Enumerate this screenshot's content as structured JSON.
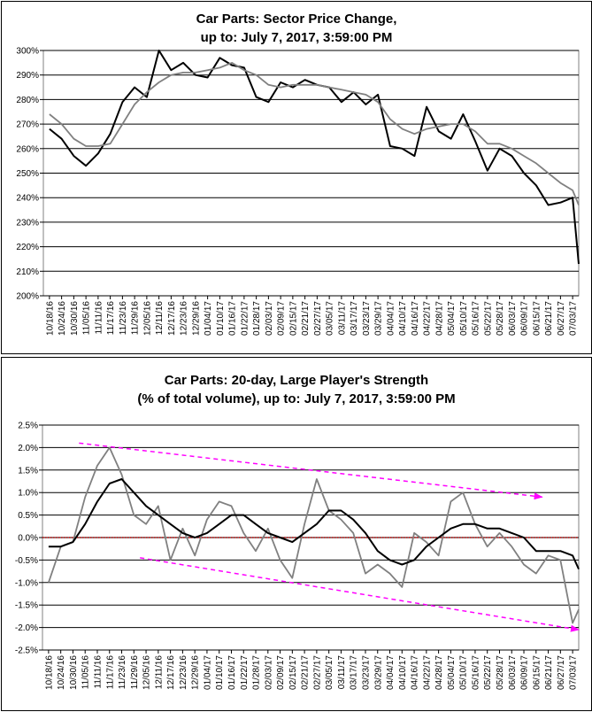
{
  "chart_data": [
    {
      "type": "line",
      "title": "Car Parts: Sector Price Change,",
      "subtitle": "up to: July 7, 2017, 3:59:00 PM",
      "xlabel": "",
      "ylabel": "",
      "ylim": [
        200,
        300
      ],
      "y_ticks": [
        "200%",
        "210%",
        "220%",
        "230%",
        "240%",
        "250%",
        "260%",
        "270%",
        "280%",
        "290%",
        "300%"
      ],
      "x_ticks": [
        "10/18/16",
        "10/24/16",
        "10/30/16",
        "11/05/16",
        "11/11/16",
        "11/17/16",
        "11/23/16",
        "11/29/16",
        "12/05/16",
        "12/11/16",
        "12/17/16",
        "12/23/16",
        "12/29/16",
        "01/04/17",
        "01/10/17",
        "01/16/17",
        "01/22/17",
        "01/28/17",
        "02/03/17",
        "02/09/17",
        "02/15/17",
        "02/21/17",
        "02/27/17",
        "03/05/17",
        "03/11/17",
        "03/17/17",
        "03/23/17",
        "03/29/17",
        "04/04/17",
        "04/10/17",
        "04/16/17",
        "04/22/17",
        "04/28/17",
        "05/04/17",
        "05/10/17",
        "05/16/17",
        "05/22/17",
        "05/28/17",
        "06/03/17",
        "06/09/17",
        "06/15/17",
        "06/21/17",
        "06/27/17",
        "07/03/17"
      ],
      "grid": true,
      "series": [
        {
          "color": "#000000",
          "x": [
            0,
            1,
            2,
            3,
            4,
            5,
            6,
            7,
            8,
            9,
            10,
            11,
            12,
            13,
            14,
            15,
            16,
            17,
            18,
            19,
            20,
            21,
            22,
            23,
            24,
            25,
            26,
            27,
            28,
            29,
            30,
            31,
            32,
            33,
            34,
            35,
            36,
            37,
            38,
            39,
            40,
            41,
            42,
            43,
            43.5
          ],
          "y": [
            268,
            264,
            257,
            253,
            258,
            266,
            279,
            285,
            281,
            300,
            292,
            295,
            290,
            289,
            297,
            294,
            293,
            281,
            279,
            287,
            285,
            288,
            286,
            285,
            279,
            283,
            278,
            282,
            261,
            260,
            257,
            277,
            267,
            264,
            274,
            263,
            251,
            260,
            257,
            250,
            245,
            237,
            238,
            240,
            213
          ]
        },
        {
          "color": "#808080",
          "x": [
            0,
            1,
            2,
            3,
            4,
            5,
            6,
            7,
            8,
            9,
            10,
            11,
            12,
            13,
            14,
            15,
            16,
            17,
            18,
            19,
            20,
            21,
            22,
            23,
            24,
            25,
            26,
            27,
            28,
            29,
            30,
            31,
            32,
            33,
            34,
            35,
            36,
            37,
            38,
            39,
            40,
            41,
            42,
            43,
            43.5
          ],
          "y": [
            274,
            270,
            264,
            261,
            261,
            262,
            270,
            278,
            283,
            287,
            290,
            291,
            291,
            292,
            293,
            295,
            292,
            290,
            286,
            285,
            286,
            286,
            286,
            285,
            284,
            283,
            282,
            279,
            272,
            268,
            266,
            268,
            269,
            270,
            270,
            267,
            262,
            262,
            260,
            257,
            254,
            250,
            246,
            243,
            237
          ]
        }
      ]
    },
    {
      "type": "line",
      "title": "Car Parts: 20-day, Large Player's Strength",
      "subtitle": "(% of total volume), up to: July 7, 2017, 3:59:00 PM",
      "xlabel": "",
      "ylabel": "",
      "ylim": [
        -2.5,
        2.5
      ],
      "y_ticks": [
        "-2.5%",
        "-2.0%",
        "-1.5%",
        "-1.0%",
        "-0.5%",
        "0.0%",
        "0.5%",
        "1.0%",
        "1.5%",
        "2.0%",
        "2.5%"
      ],
      "x_ticks": [
        "10/18/16",
        "10/24/16",
        "10/30/16",
        "11/05/16",
        "11/11/16",
        "11/17/16",
        "11/23/16",
        "11/29/16",
        "12/05/16",
        "12/11/16",
        "12/17/16",
        "12/23/16",
        "12/29/16",
        "01/04/17",
        "01/10/17",
        "01/16/17",
        "01/22/17",
        "01/28/17",
        "02/03/17",
        "02/09/17",
        "02/15/17",
        "02/21/17",
        "02/27/17",
        "03/05/17",
        "03/11/17",
        "03/17/17",
        "03/23/17",
        "03/29/17",
        "04/04/17",
        "04/10/17",
        "04/16/17",
        "04/22/17",
        "04/28/17",
        "05/04/17",
        "05/10/17",
        "05/16/17",
        "05/22/17",
        "05/28/17",
        "06/03/17",
        "06/09/17",
        "06/15/17",
        "06/21/17",
        "06/27/17",
        "07/03/17"
      ],
      "grid": true,
      "series": [
        {
          "color": "#808080",
          "x": [
            0,
            1,
            2,
            3,
            4,
            5,
            6,
            7,
            8,
            9,
            10,
            11,
            12,
            13,
            14,
            15,
            16,
            17,
            18,
            19,
            20,
            21,
            22,
            23,
            24,
            25,
            26,
            27,
            28,
            29,
            30,
            31,
            32,
            33,
            34,
            35,
            36,
            37,
            38,
            39,
            40,
            41,
            42,
            43,
            43.5
          ],
          "y": [
            -1.0,
            -0.2,
            -0.1,
            0.9,
            1.6,
            2.0,
            1.4,
            0.5,
            0.3,
            0.7,
            -0.5,
            0.2,
            -0.4,
            0.4,
            0.8,
            0.7,
            0.1,
            -0.3,
            0.2,
            -0.5,
            -0.9,
            0.3,
            1.3,
            0.6,
            0.4,
            0.1,
            -0.8,
            -0.6,
            -0.8,
            -1.1,
            0.1,
            -0.1,
            -0.4,
            0.8,
            1.0,
            0.3,
            -0.2,
            0.1,
            -0.2,
            -0.6,
            -0.8,
            -0.4,
            -0.5,
            -1.9,
            -1.6
          ]
        },
        {
          "color": "#000000",
          "x": [
            0,
            1,
            2,
            3,
            4,
            5,
            6,
            7,
            8,
            9,
            10,
            11,
            12,
            13,
            14,
            15,
            16,
            17,
            18,
            19,
            20,
            21,
            22,
            23,
            24,
            25,
            26,
            27,
            28,
            29,
            30,
            31,
            32,
            33,
            34,
            35,
            36,
            37,
            38,
            39,
            40,
            41,
            42,
            43,
            43.5
          ],
          "y": [
            -0.2,
            -0.2,
            -0.1,
            0.3,
            0.8,
            1.2,
            1.3,
            1.0,
            0.7,
            0.5,
            0.3,
            0.1,
            0.0,
            0.1,
            0.3,
            0.5,
            0.5,
            0.3,
            0.1,
            0.0,
            -0.1,
            0.1,
            0.3,
            0.6,
            0.6,
            0.4,
            0.1,
            -0.3,
            -0.5,
            -0.6,
            -0.5,
            -0.2,
            0.0,
            0.2,
            0.3,
            0.3,
            0.2,
            0.2,
            0.1,
            0.0,
            -0.3,
            -0.3,
            -0.3,
            -0.4,
            -0.7
          ]
        }
      ],
      "trend_lines": [
        {
          "color": "#ff00ff",
          "x": [
            2.5,
            40.5
          ],
          "y": [
            2.1,
            0.9
          ]
        },
        {
          "color": "#ff00ff",
          "x": [
            7.5,
            43.5
          ],
          "y": [
            -0.45,
            -2.05
          ]
        }
      ],
      "zero_line_color": "#c00000"
    }
  ]
}
